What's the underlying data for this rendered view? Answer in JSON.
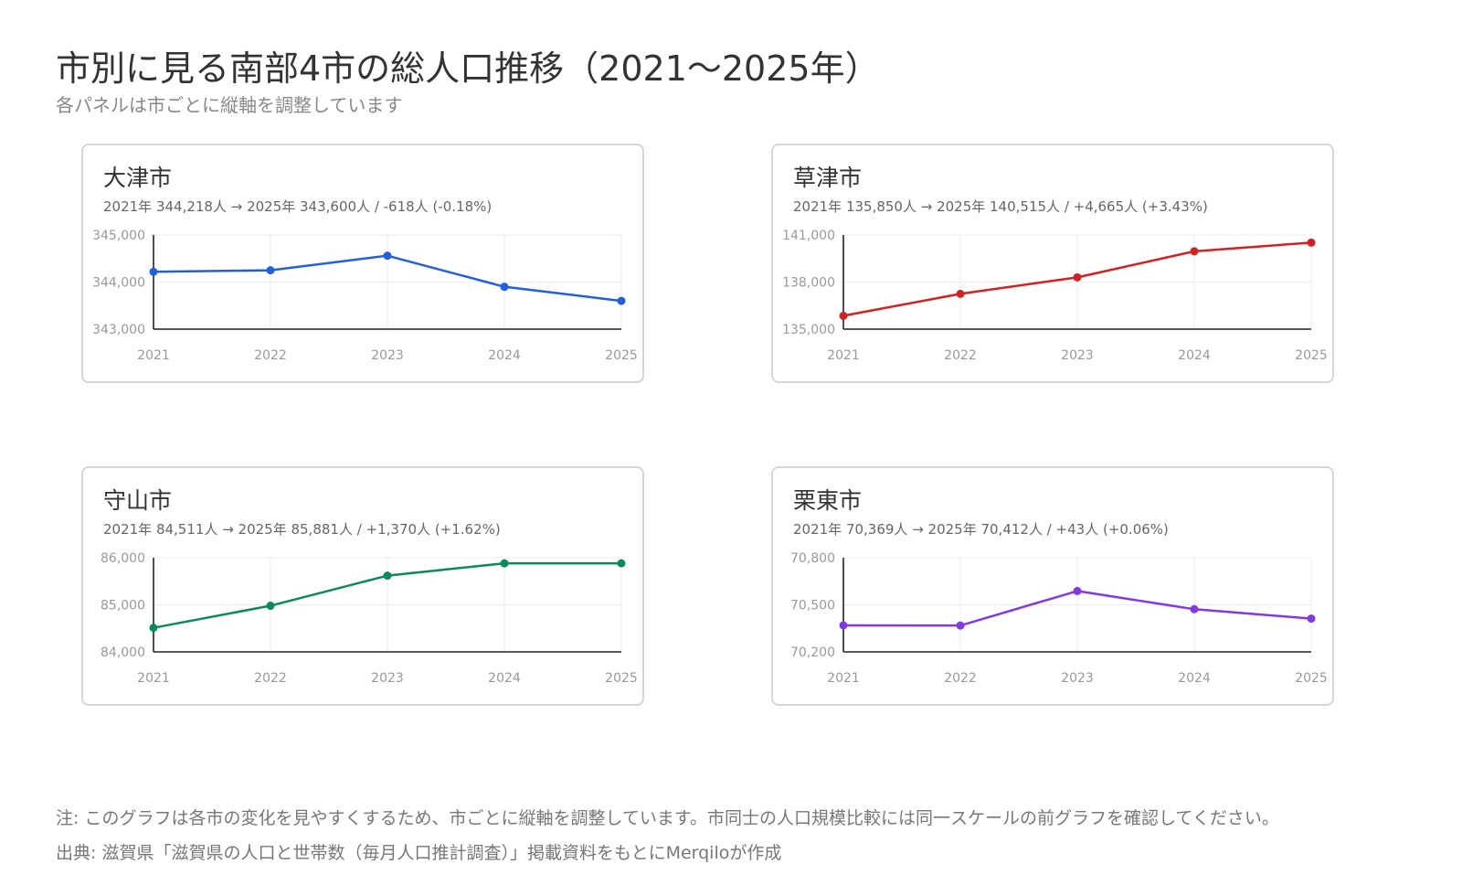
{
  "page": {
    "title": "市別に見る南部4市の総人口推移（2021〜2025年）",
    "subtitle": "各パネルは市ごとに縦軸を調整しています"
  },
  "footnotes": {
    "note": "注: このグラフは各市の変化を見やすくするため、市ごとに縦軸を調整しています。市同士の人口規模比較には同一スケールの前グラフを確認してください。",
    "source": "出典: 滋賀県「滋賀県の人口と世帯数（毎月人口推計調査）」掲載資料をもとにMerqiloが作成"
  },
  "chart_data": [
    {
      "type": "line",
      "title": "大津市",
      "summary": "2021年 344,218人 → 2025年 343,600人 / -618人 (-0.18%)",
      "x": [
        "2021",
        "2022",
        "2023",
        "2024",
        "2025"
      ],
      "values": [
        344218,
        344250,
        344560,
        343900,
        343600
      ],
      "ylim": [
        343000,
        345000
      ],
      "yticks": [
        343000,
        344000,
        345000
      ],
      "ytick_labels": [
        "343,000",
        "344,000",
        "345,000"
      ],
      "color": "#1f5fe0",
      "grid": true
    },
    {
      "type": "line",
      "title": "草津市",
      "summary": "2021年 135,850人 → 2025年 140,515人 / +4,665人 (+3.43%)",
      "x": [
        "2021",
        "2022",
        "2023",
        "2024",
        "2025"
      ],
      "values": [
        135850,
        137250,
        138300,
        139960,
        140515
      ],
      "ylim": [
        135000,
        141000
      ],
      "yticks": [
        135000,
        138000,
        141000
      ],
      "ytick_labels": [
        "135,000",
        "138,000",
        "141,000"
      ],
      "color": "#d42020",
      "grid": true
    },
    {
      "type": "line",
      "title": "守山市",
      "summary": "2021年 84,511人 → 2025年 85,881人 / +1,370人 (+1.62%)",
      "x": [
        "2021",
        "2022",
        "2023",
        "2024",
        "2025"
      ],
      "values": [
        84511,
        84980,
        85620,
        85880,
        85881
      ],
      "ylim": [
        84000,
        86000
      ],
      "yticks": [
        84000,
        85000,
        86000
      ],
      "ytick_labels": [
        "84,000",
        "85,000",
        "86,000"
      ],
      "color": "#0a8a5c",
      "grid": true
    },
    {
      "type": "line",
      "title": "栗東市",
      "summary": "2021年 70,369人 → 2025年 70,412人 / +43人 (+0.06%)",
      "x": [
        "2021",
        "2022",
        "2023",
        "2024",
        "2025"
      ],
      "values": [
        70369,
        70368,
        70588,
        70472,
        70412
      ],
      "ylim": [
        70200,
        70800
      ],
      "yticks": [
        70200,
        70500,
        70800
      ],
      "ytick_labels": [
        "70,200",
        "70,500",
        "70,800"
      ],
      "color": "#8338e6",
      "grid": true
    }
  ]
}
